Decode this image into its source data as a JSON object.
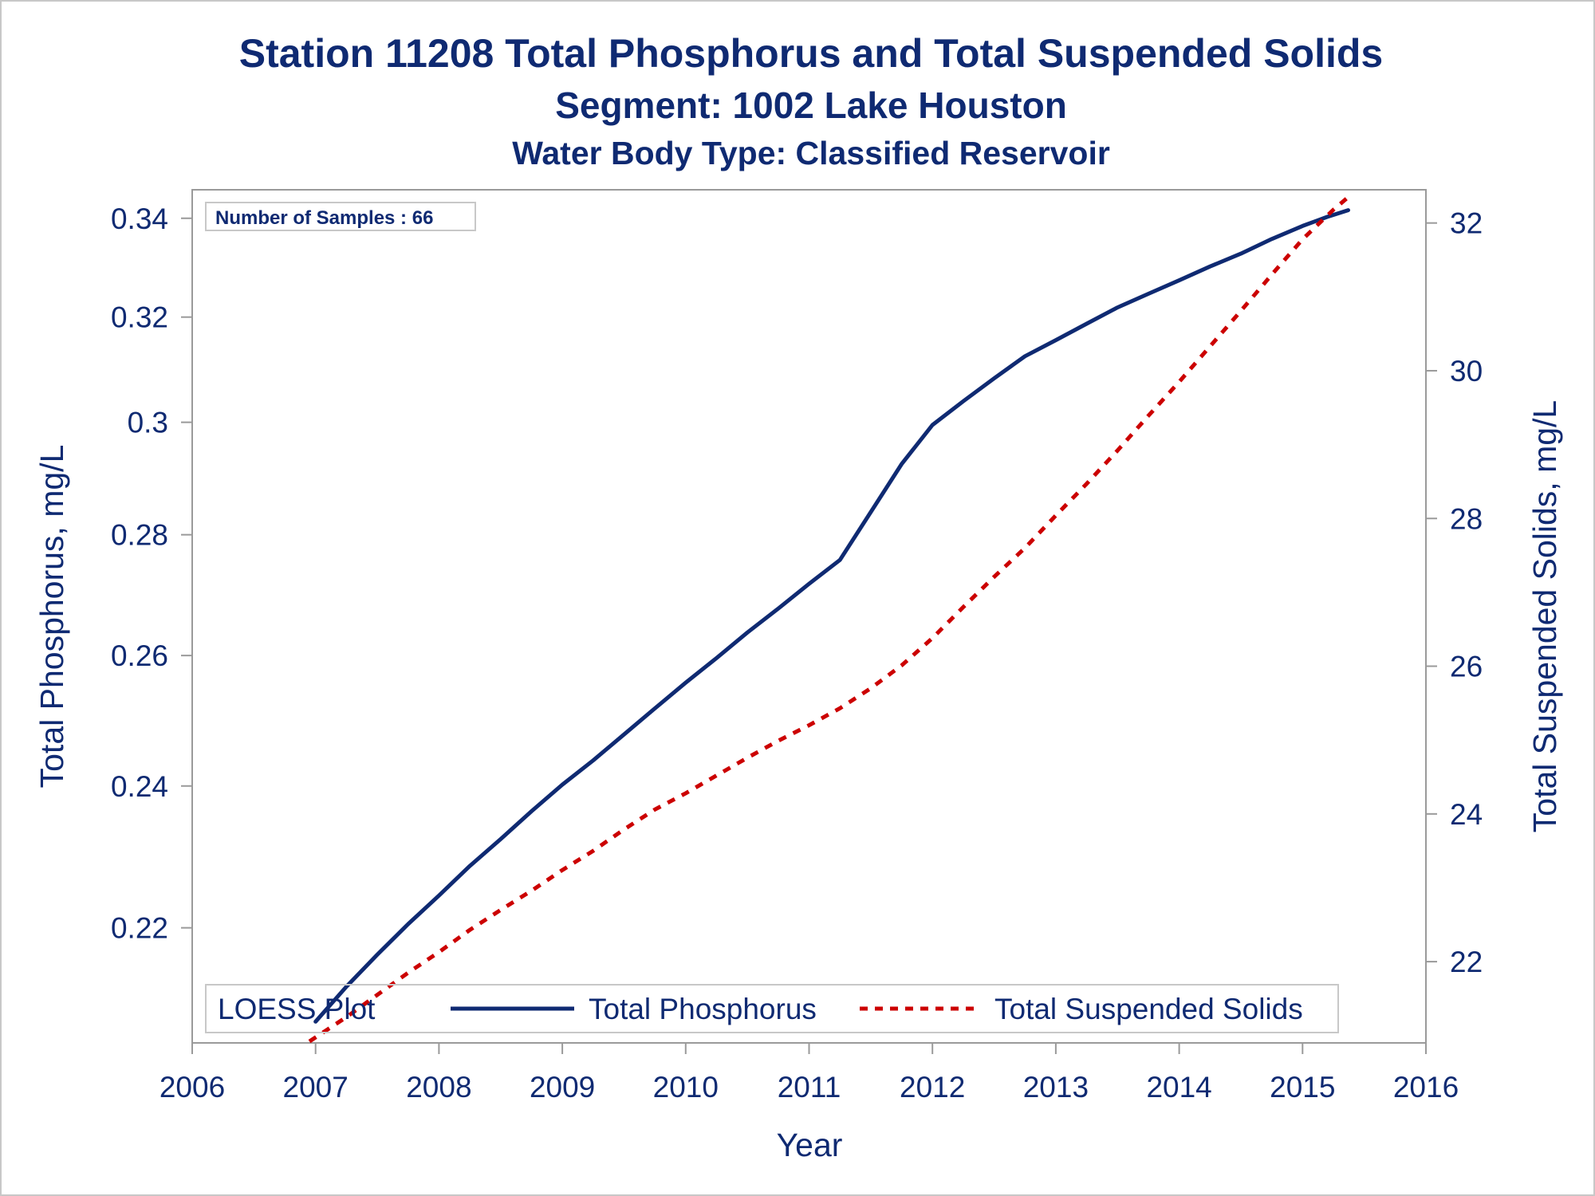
{
  "chart_data": {
    "type": "line",
    "title": "Station 11208  Total Phosphorus and Total Suspended Solids",
    "subtitle": "Segment: 1002  Lake Houston",
    "subtitle2": "Water Body Type: Classified Reservoir",
    "xlabel": "Year",
    "ylabel": "Total Phosphorus, mg/L",
    "y2label": "Total Suspended Solids, mg/L",
    "xlim": [
      2006,
      2016
    ],
    "ylim": [
      0.205,
      0.346
    ],
    "y2lim": [
      20.9,
      32.45
    ],
    "x_ticks": [
      "2006",
      "2007",
      "2008",
      "2009",
      "2010",
      "2011",
      "2012",
      "2013",
      "2014",
      "2015",
      "2016"
    ],
    "y_ticks": [
      "0.22",
      "0.24",
      "0.26",
      "0.28",
      "0.3",
      "0.32",
      "0.34"
    ],
    "y2_ticks": [
      "22",
      "24",
      "26",
      "28",
      "30",
      "32"
    ],
    "y_scale_note": "left axis drawn on a log-like scale",
    "inset_text": "Number of Samples : 66",
    "legend": {
      "title": "LOESS Plot",
      "position": "bottom-inside",
      "items": [
        {
          "label": "Total Phosphorus",
          "style": "solid"
        },
        {
          "label": "Total Suspended Solids",
          "style": "dashed"
        }
      ]
    },
    "grid": false,
    "series": [
      {
        "name": "Total Phosphorus",
        "axis": "left",
        "color": "#0f2a72",
        "style": "solid",
        "points": [
          [
            2007.0,
            0.2077
          ],
          [
            2007.25,
            0.2122
          ],
          [
            2007.5,
            0.2164
          ],
          [
            2007.75,
            0.2205
          ],
          [
            2008.0,
            0.2244
          ],
          [
            2008.25,
            0.2285
          ],
          [
            2008.5,
            0.2323
          ],
          [
            2008.75,
            0.2363
          ],
          [
            2009.0,
            0.2402
          ],
          [
            2009.25,
            0.2438
          ],
          [
            2009.5,
            0.2477
          ],
          [
            2009.75,
            0.2517
          ],
          [
            2010.0,
            0.2557
          ],
          [
            2010.25,
            0.2596
          ],
          [
            2010.5,
            0.2637
          ],
          [
            2010.75,
            0.2676
          ],
          [
            2011.0,
            0.2717
          ],
          [
            2011.25,
            0.2757
          ],
          [
            2011.5,
            0.2839
          ],
          [
            2011.75,
            0.2924
          ],
          [
            2012.0,
            0.2995
          ],
          [
            2012.25,
            0.3039
          ],
          [
            2012.5,
            0.3082
          ],
          [
            2012.75,
            0.3124
          ],
          [
            2013.0,
            0.3155
          ],
          [
            2013.25,
            0.3187
          ],
          [
            2013.5,
            0.3219
          ],
          [
            2013.75,
            0.3246
          ],
          [
            2014.0,
            0.3273
          ],
          [
            2014.25,
            0.3301
          ],
          [
            2014.5,
            0.3327
          ],
          [
            2014.75,
            0.3357
          ],
          [
            2015.0,
            0.3384
          ],
          [
            2015.2,
            0.3403
          ],
          [
            2015.37,
            0.3417
          ]
        ]
      },
      {
        "name": "Total Suspended Solids",
        "axis": "right",
        "color": "#cc0000",
        "style": "dashed",
        "points": [
          [
            2006.95,
            20.92
          ],
          [
            2007.25,
            21.25
          ],
          [
            2007.5,
            21.55
          ],
          [
            2007.75,
            21.85
          ],
          [
            2008.0,
            22.13
          ],
          [
            2008.25,
            22.43
          ],
          [
            2008.5,
            22.7
          ],
          [
            2008.75,
            22.96
          ],
          [
            2009.0,
            23.24
          ],
          [
            2009.25,
            23.5
          ],
          [
            2009.5,
            23.79
          ],
          [
            2009.75,
            24.06
          ],
          [
            2010.0,
            24.28
          ],
          [
            2010.25,
            24.52
          ],
          [
            2010.5,
            24.76
          ],
          [
            2010.75,
            24.99
          ],
          [
            2011.0,
            25.2
          ],
          [
            2011.25,
            25.43
          ],
          [
            2011.5,
            25.7
          ],
          [
            2011.75,
            26.01
          ],
          [
            2012.0,
            26.38
          ],
          [
            2012.25,
            26.8
          ],
          [
            2012.5,
            27.21
          ],
          [
            2012.75,
            27.6
          ],
          [
            2013.0,
            28.04
          ],
          [
            2013.25,
            28.47
          ],
          [
            2013.5,
            28.92
          ],
          [
            2013.75,
            29.39
          ],
          [
            2014.0,
            29.85
          ],
          [
            2014.25,
            30.33
          ],
          [
            2014.5,
            30.81
          ],
          [
            2014.75,
            31.3
          ],
          [
            2015.0,
            31.78
          ],
          [
            2015.25,
            32.18
          ],
          [
            2015.37,
            32.35
          ]
        ]
      }
    ]
  }
}
